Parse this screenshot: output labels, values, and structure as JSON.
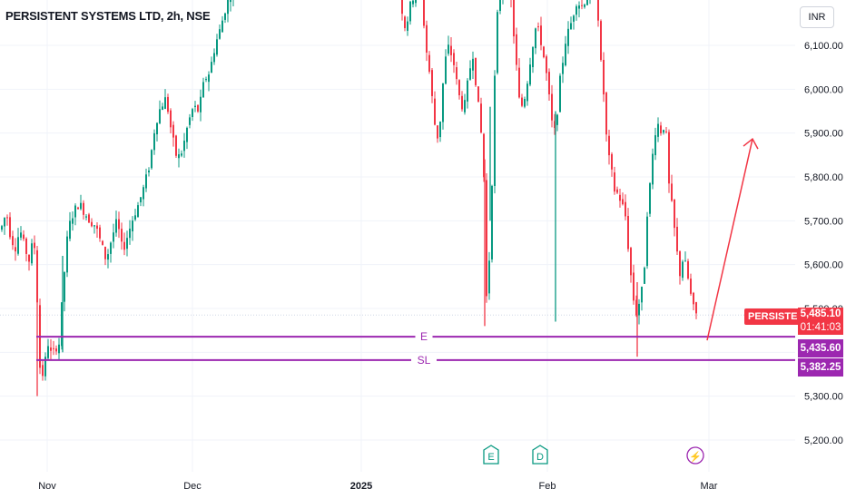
{
  "header": {
    "title": "PERSISTENT SYSTEMS LTD, 2h, NSE",
    "currency": "INR"
  },
  "price_labels": {
    "symbol_tag": "PERSISTENT",
    "last_price": "5,485.10",
    "countdown": "01:41:03",
    "entry_price": "5,435.60",
    "stoploss_price": "5,382.25"
  },
  "lines": {
    "entry_label": "E",
    "stoploss_label": "SL"
  },
  "event_markers": [
    "E",
    "D",
    "⚡"
  ],
  "colors": {
    "up": "#089981",
    "down": "#f23645",
    "level": "#9c27b0",
    "arrow": "#f23645",
    "grid": "#f0f3fa"
  },
  "chart_data": {
    "type": "candlestick",
    "title": "PERSISTENT SYSTEMS LTD, 2h, NSE",
    "y_ticks": [
      5200,
      5300,
      5400,
      5500,
      5600,
      5700,
      5800,
      5900,
      6000,
      6100
    ],
    "y_tick_labels": [
      "5,200.00",
      "5,300.00",
      "5,400.00",
      "5,500.00",
      "5,600.00",
      "5,700.00",
      "5,800.00",
      "5,900.00",
      "6,000.00",
      "6,100.00"
    ],
    "x_tick_labels": [
      "Nov",
      "Dec",
      "2025",
      "Feb",
      "Mar"
    ],
    "ylim": [
      5140,
      6180
    ],
    "levels": [
      {
        "name": "E",
        "value": 5435.6
      },
      {
        "name": "SL",
        "value": 5382.25
      }
    ],
    "last_price": 5485.1,
    "projection": {
      "from": 5435.6,
      "to": 5895.0
    },
    "price_path": [
      {
        "t": 0,
        "p": 5680
      },
      {
        "t": 6,
        "p": 5720
      },
      {
        "t": 11,
        "p": 5660
      },
      {
        "t": 16,
        "p": 5640
      },
      {
        "t": 21,
        "p": 5680
      },
      {
        "t": 26,
        "p": 5640
      },
      {
        "t": 31,
        "p": 5610
      },
      {
        "t": 36,
        "p": 5660
      },
      {
        "t": 39,
        "p": 5600
      },
      {
        "t": 41,
        "p": 5440
      },
      {
        "t": 44,
        "p": 5330
      },
      {
        "t": 48,
        "p": 5370
      },
      {
        "t": 52,
        "p": 5420
      },
      {
        "t": 56,
        "p": 5390
      },
      {
        "t": 60,
        "p": 5410
      },
      {
        "t": 64,
        "p": 5420
      },
      {
        "t": 69,
        "p": 5560
      },
      {
        "t": 74,
        "p": 5680
      },
      {
        "t": 80,
        "p": 5720
      },
      {
        "t": 86,
        "p": 5740
      },
      {
        "t": 92,
        "p": 5720
      },
      {
        "t": 98,
        "p": 5700
      },
      {
        "t": 104,
        "p": 5690
      },
      {
        "t": 110,
        "p": 5650
      },
      {
        "t": 116,
        "p": 5610
      },
      {
        "t": 122,
        "p": 5660
      },
      {
        "t": 128,
        "p": 5700
      },
      {
        "t": 134,
        "p": 5630
      },
      {
        "t": 140,
        "p": 5670
      },
      {
        "t": 146,
        "p": 5710
      },
      {
        "t": 152,
        "p": 5740
      },
      {
        "t": 158,
        "p": 5780
      },
      {
        "t": 164,
        "p": 5830
      },
      {
        "t": 170,
        "p": 5920
      },
      {
        "t": 176,
        "p": 5960
      },
      {
        "t": 182,
        "p": 5980
      },
      {
        "t": 188,
        "p": 5900
      },
      {
        "t": 194,
        "p": 5840
      },
      {
        "t": 200,
        "p": 5860
      },
      {
        "t": 206,
        "p": 5920
      },
      {
        "t": 212,
        "p": 5960
      },
      {
        "t": 218,
        "p": 5950
      },
      {
        "t": 224,
        "p": 6020
      },
      {
        "t": 230,
        "p": 6040
      },
      {
        "t": 236,
        "p": 6100
      },
      {
        "t": 242,
        "p": 6140
      },
      {
        "t": 248,
        "p": 6190
      },
      {
        "t": 254,
        "p": 6220
      },
      {
        "t": 262,
        "p": 6260
      },
      {
        "t": 440,
        "p": 6220
      },
      {
        "t": 444,
        "p": 6140
      },
      {
        "t": 448,
        "p": 6160
      },
      {
        "t": 452,
        "p": 6200
      },
      {
        "t": 458,
        "p": 6230
      },
      {
        "t": 462,
        "p": 6250
      },
      {
        "t": 468,
        "p": 6100
      },
      {
        "t": 472,
        "p": 6040
      },
      {
        "t": 476,
        "p": 5960
      },
      {
        "t": 480,
        "p": 5880
      },
      {
        "t": 484,
        "p": 5930
      },
      {
        "t": 488,
        "p": 6040
      },
      {
        "t": 492,
        "p": 6100
      },
      {
        "t": 498,
        "p": 6070
      },
      {
        "t": 504,
        "p": 5990
      },
      {
        "t": 510,
        "p": 5950
      },
      {
        "t": 516,
        "p": 6040
      },
      {
        "t": 520,
        "p": 6080
      },
      {
        "t": 526,
        "p": 5960
      },
      {
        "t": 530,
        "p": 5880
      },
      {
        "t": 532,
        "p": 5800
      },
      {
        "t": 534,
        "p": 5500
      },
      {
        "t": 537,
        "p": 5580
      },
      {
        "t": 540,
        "p": 5680
      },
      {
        "t": 542,
        "p": 5900
      },
      {
        "t": 546,
        "p": 6150
      },
      {
        "t": 550,
        "p": 6220
      },
      {
        "t": 560,
        "p": 6250
      },
      {
        "t": 566,
        "p": 6100
      },
      {
        "t": 572,
        "p": 5950
      },
      {
        "t": 578,
        "p": 5990
      },
      {
        "t": 584,
        "p": 6080
      },
      {
        "t": 590,
        "p": 6150
      },
      {
        "t": 596,
        "p": 6100
      },
      {
        "t": 602,
        "p": 6020
      },
      {
        "t": 606,
        "p": 5940
      },
      {
        "t": 609,
        "p": 5890
      },
      {
        "t": 612,
        "p": 5930
      },
      {
        "t": 616,
        "p": 6020
      },
      {
        "t": 622,
        "p": 6110
      },
      {
        "t": 628,
        "p": 6150
      },
      {
        "t": 634,
        "p": 6200
      },
      {
        "t": 640,
        "p": 6190
      },
      {
        "t": 648,
        "p": 6220
      },
      {
        "t": 656,
        "p": 6250
      },
      {
        "t": 660,
        "p": 6080
      },
      {
        "t": 664,
        "p": 5990
      },
      {
        "t": 668,
        "p": 5860
      },
      {
        "t": 672,
        "p": 5820
      },
      {
        "t": 676,
        "p": 5770
      },
      {
        "t": 680,
        "p": 5760
      },
      {
        "t": 684,
        "p": 5740
      },
      {
        "t": 688,
        "p": 5710
      },
      {
        "t": 692,
        "p": 5620
      },
      {
        "t": 696,
        "p": 5530
      },
      {
        "t": 700,
        "p": 5490
      },
      {
        "t": 704,
        "p": 5520
      },
      {
        "t": 708,
        "p": 5560
      },
      {
        "t": 712,
        "p": 5720
      },
      {
        "t": 716,
        "p": 5800
      },
      {
        "t": 720,
        "p": 5900
      },
      {
        "t": 724,
        "p": 5920
      },
      {
        "t": 728,
        "p": 5900
      },
      {
        "t": 732,
        "p": 5930
      },
      {
        "t": 736,
        "p": 5780
      },
      {
        "t": 740,
        "p": 5720
      },
      {
        "t": 744,
        "p": 5640
      },
      {
        "t": 748,
        "p": 5580
      },
      {
        "t": 752,
        "p": 5620
      },
      {
        "t": 756,
        "p": 5580
      },
      {
        "t": 760,
        "p": 5530
      },
      {
        "t": 764,
        "p": 5490
      },
      {
        "t": 767,
        "p": 5485
      }
    ]
  }
}
